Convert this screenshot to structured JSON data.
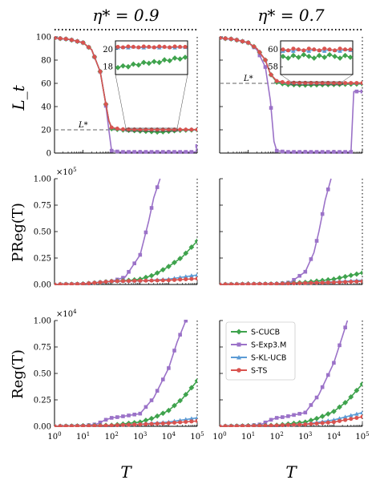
{
  "colors": {
    "S-CUCB": "#3fa34d",
    "S-Exp3.M": "#9b72c8",
    "S-KL-UCB": "#5b9bd5",
    "S-TS": "#d9534f",
    "dashed": "#808080"
  },
  "legend": [
    "S-CUCB",
    "S-Exp3.M",
    "S-KL-UCB",
    "S-TS"
  ],
  "column_titles": [
    "η* = 0.9",
    "η* = 0.7"
  ],
  "row_labels": [
    "L_t",
    "PReg(T)",
    "Reg(T)"
  ],
  "x_label": "T",
  "x_tick_labels": [
    "10^0",
    "10^1",
    "10^2",
    "10^3",
    "10^4",
    "10^5"
  ],
  "chart_data": [
    {
      "type": "line",
      "row": 0,
      "col": 0,
      "title": "η* = 0.9",
      "ylabel": "L_t",
      "xlabel": "",
      "xscale": "log",
      "xlim": [
        1,
        100000
      ],
      "ylim": [
        0,
        100
      ],
      "yticks": [
        0,
        20,
        40,
        60,
        80,
        100
      ],
      "ref_line": {
        "label": "L*",
        "value": 20
      },
      "series": [
        {
          "name": "S-CUCB",
          "x": [
            1,
            3,
            10,
            20,
            40,
            60,
            80,
            100,
            200,
            1000,
            5000,
            20000,
            100000
          ],
          "y": [
            99,
            98,
            95,
            89,
            70,
            45,
            28,
            21,
            20,
            19,
            18,
            19.5,
            20
          ]
        },
        {
          "name": "S-Exp3.M",
          "x": [
            1,
            3,
            10,
            20,
            40,
            60,
            80,
            100,
            200,
            1000,
            10000,
            90000,
            100000
          ],
          "y": [
            99,
            98,
            95,
            89,
            70,
            45,
            20,
            2,
            1,
            1,
            1,
            1,
            6
          ]
        },
        {
          "name": "S-KL-UCB",
          "x": [
            1,
            3,
            10,
            20,
            40,
            60,
            80,
            100,
            200,
            1000,
            10000,
            100000
          ],
          "y": [
            99,
            98,
            95,
            89,
            70,
            45,
            28,
            22,
            20.5,
            20.3,
            20.2,
            20.2
          ]
        },
        {
          "name": "S-TS",
          "x": [
            1,
            3,
            10,
            20,
            40,
            60,
            80,
            100,
            200,
            1000,
            10000,
            100000
          ],
          "y": [
            99,
            98,
            95,
            89,
            70,
            45,
            28,
            22,
            20.5,
            20.2,
            20.2,
            20.2
          ]
        }
      ],
      "inset": {
        "yticks": [
          18,
          20
        ],
        "series": [
          {
            "name": "S-CUCB",
            "y": [
              17.9,
              18.1,
              18.0,
              18.3,
              18.2,
              18.5,
              18.4,
              18.6,
              18.5,
              18.8,
              18.7,
              19.0,
              18.9,
              19.1
            ]
          },
          {
            "name": "S-KL-UCB",
            "y": [
              20.2,
              20.25,
              20.2,
              20.3,
              20.25,
              20.2,
              20.3,
              20.25,
              20.2,
              20.3,
              20.25,
              20.2,
              20.3,
              20.25
            ]
          },
          {
            "name": "S-TS",
            "y": [
              20.3,
              20.25,
              20.35,
              20.3,
              20.25,
              20.35,
              20.3,
              20.25,
              20.35,
              20.3,
              20.25,
              20.35,
              20.3,
              20.3
            ]
          }
        ]
      }
    },
    {
      "type": "line",
      "row": 0,
      "col": 1,
      "title": "η* = 0.7",
      "ylabel": "",
      "xlabel": "",
      "xscale": "log",
      "xlim": [
        1,
        100000
      ],
      "ylim": [
        0,
        100
      ],
      "yticks": [
        0,
        20,
        40,
        60,
        80,
        100
      ],
      "ref_line": {
        "label": "L*",
        "value": 60
      },
      "series": [
        {
          "name": "S-CUCB",
          "x": [
            1,
            3,
            10,
            20,
            40,
            60,
            100,
            200,
            1000,
            10000,
            100000
          ],
          "y": [
            99,
            98,
            95,
            90,
            80,
            68,
            61,
            59,
            58.5,
            59,
            59.5
          ]
        },
        {
          "name": "S-Exp3.M",
          "x": [
            1,
            3,
            10,
            20,
            40,
            60,
            80,
            100,
            200,
            1000,
            10000,
            40000,
            50000,
            70000,
            100000
          ],
          "y": [
            99,
            98,
            95,
            89,
            74,
            45,
            10,
            2,
            1,
            1,
            1,
            1,
            53,
            53,
            53
          ]
        },
        {
          "name": "S-KL-UCB",
          "x": [
            1,
            3,
            10,
            20,
            40,
            60,
            100,
            200,
            1000,
            10000,
            100000
          ],
          "y": [
            99,
            98,
            95,
            90,
            80,
            68,
            62,
            60.5,
            60.3,
            60.2,
            60.2
          ]
        },
        {
          "name": "S-TS",
          "x": [
            1,
            3,
            10,
            20,
            40,
            60,
            100,
            200,
            1000,
            10000,
            100000
          ],
          "y": [
            99,
            98,
            95,
            90,
            80,
            68,
            62,
            60.6,
            60.4,
            60.3,
            60.3
          ]
        }
      ],
      "inset": {
        "yticks": [
          58,
          60
        ],
        "series": [
          {
            "name": "S-CUCB",
            "y": [
              59.2,
              59.0,
              59.3,
              59.1,
              59.4,
              59.2,
              59.0,
              59.3,
              59.1,
              59.4,
              59.2,
              59.0,
              59.3,
              59.1
            ]
          },
          {
            "name": "S-KL-UCB",
            "y": [
              59.8,
              59.9,
              59.8,
              60.0,
              59.9,
              59.8,
              60.0,
              59.9,
              59.8,
              60.0,
              59.9,
              59.8,
              60.0,
              59.9
            ]
          },
          {
            "name": "S-TS",
            "y": [
              60.0,
              59.9,
              60.1,
              60.0,
              59.9,
              60.1,
              60.0,
              59.9,
              60.1,
              60.0,
              59.9,
              60.1,
              60.0,
              60.0
            ]
          }
        ]
      }
    },
    {
      "type": "line",
      "row": 1,
      "col": 0,
      "title": "",
      "ylabel": "PReg(T)",
      "xlabel": "",
      "yscale_label": "×10^5",
      "xscale": "log",
      "xlim": [
        1,
        100000
      ],
      "ylim": [
        0,
        1.0
      ],
      "yticks": [
        0,
        0.25,
        0.5,
        0.75,
        1.0
      ],
      "series": [
        {
          "name": "S-CUCB",
          "x": [
            1,
            10,
            100,
            500,
            1000,
            3000,
            10000,
            30000,
            100000
          ],
          "y": [
            0,
            0.005,
            0.03,
            0.04,
            0.05,
            0.09,
            0.17,
            0.26,
            0.41
          ]
        },
        {
          "name": "S-Exp3.M",
          "x": [
            1,
            10,
            100,
            300,
            1000,
            2000,
            3000,
            5000
          ],
          "y": [
            0,
            0.005,
            0.03,
            0.07,
            0.28,
            0.6,
            0.82,
            1.0
          ]
        },
        {
          "name": "S-KL-UCB",
          "x": [
            1,
            10,
            100,
            1000,
            10000,
            100000
          ],
          "y": [
            0,
            0.005,
            0.03,
            0.035,
            0.05,
            0.09
          ]
        },
        {
          "name": "S-TS",
          "x": [
            1,
            10,
            100,
            1000,
            10000,
            100000
          ],
          "y": [
            0,
            0.005,
            0.03,
            0.035,
            0.04,
            0.055
          ]
        }
      ]
    },
    {
      "type": "line",
      "row": 1,
      "col": 1,
      "title": "",
      "ylabel": "",
      "xlabel": "",
      "xscale": "log",
      "xlim": [
        1,
        100000
      ],
      "ylim": [
        0,
        1.0
      ],
      "yticks": [
        0,
        0.25,
        0.5,
        0.75,
        1.0
      ],
      "series": [
        {
          "name": "S-CUCB",
          "x": [
            1,
            10,
            100,
            1000,
            10000,
            100000
          ],
          "y": [
            0,
            0.003,
            0.005,
            0.02,
            0.05,
            0.11
          ]
        },
        {
          "name": "S-Exp3.M",
          "x": [
            1,
            10,
            100,
            300,
            1000,
            2000,
            3000,
            5000,
            8000
          ],
          "y": [
            0,
            0.003,
            0.006,
            0.02,
            0.12,
            0.3,
            0.5,
            0.8,
            1.0
          ]
        },
        {
          "name": "S-KL-UCB",
          "x": [
            1,
            10,
            100,
            1000,
            10000,
            100000
          ],
          "y": [
            0,
            0.003,
            0.005,
            0.015,
            0.025,
            0.04
          ]
        },
        {
          "name": "S-TS",
          "x": [
            1,
            10,
            100,
            1000,
            10000,
            100000
          ],
          "y": [
            0,
            0.003,
            0.005,
            0.013,
            0.02,
            0.03
          ]
        }
      ]
    },
    {
      "type": "line",
      "row": 2,
      "col": 0,
      "title": "",
      "ylabel": "Reg(T)",
      "xlabel": "T",
      "yscale_label": "×10^4",
      "xscale": "log",
      "xlim": [
        1,
        100000
      ],
      "ylim": [
        0,
        1.0
      ],
      "yticks": [
        0,
        0.25,
        0.5,
        0.75,
        1.0
      ],
      "series": [
        {
          "name": "S-CUCB",
          "x": [
            1,
            10,
            100,
            1000,
            3000,
            10000,
            30000,
            100000
          ],
          "y": [
            0,
            0.005,
            0.01,
            0.04,
            0.08,
            0.15,
            0.26,
            0.43
          ]
        },
        {
          "name": "S-Exp3.M",
          "x": [
            1,
            10,
            30,
            60,
            100,
            200,
            1000,
            3000,
            10000,
            20000,
            40000
          ],
          "y": [
            0,
            0.005,
            0.02,
            0.06,
            0.08,
            0.09,
            0.12,
            0.27,
            0.55,
            0.8,
            1.0
          ]
        },
        {
          "name": "S-KL-UCB",
          "x": [
            1,
            10,
            100,
            1000,
            10000,
            100000
          ],
          "y": [
            0,
            0.003,
            0.008,
            0.02,
            0.04,
            0.08
          ]
        },
        {
          "name": "S-TS",
          "x": [
            1,
            10,
            100,
            1000,
            10000,
            100000
          ],
          "y": [
            0,
            0.003,
            0.008,
            0.018,
            0.03,
            0.05
          ]
        }
      ]
    },
    {
      "type": "line",
      "row": 2,
      "col": 1,
      "title": "",
      "ylabel": "",
      "xlabel": "T",
      "xscale": "log",
      "xlim": [
        1,
        100000
      ],
      "ylim": [
        0,
        1.0
      ],
      "yticks": [
        0,
        0.25,
        0.5,
        0.75,
        1.0
      ],
      "series": [
        {
          "name": "S-CUCB",
          "x": [
            1,
            10,
            100,
            1000,
            3000,
            10000,
            30000,
            100000
          ],
          "y": [
            0,
            0.005,
            0.01,
            0.04,
            0.08,
            0.14,
            0.24,
            0.4
          ]
        },
        {
          "name": "S-Exp3.M",
          "x": [
            1,
            10,
            30,
            60,
            100,
            200,
            1000,
            3000,
            10000,
            20000,
            30000
          ],
          "y": [
            0,
            0.005,
            0.02,
            0.06,
            0.08,
            0.09,
            0.13,
            0.3,
            0.6,
            0.85,
            1.0
          ]
        },
        {
          "name": "S-KL-UCB",
          "x": [
            1,
            10,
            100,
            1000,
            10000,
            100000
          ],
          "y": [
            0,
            0.003,
            0.008,
            0.02,
            0.06,
            0.13
          ]
        },
        {
          "name": "S-TS",
          "x": [
            1,
            10,
            100,
            1000,
            10000,
            100000
          ],
          "y": [
            0,
            0.003,
            0.008,
            0.018,
            0.04,
            0.09
          ]
        }
      ]
    }
  ]
}
